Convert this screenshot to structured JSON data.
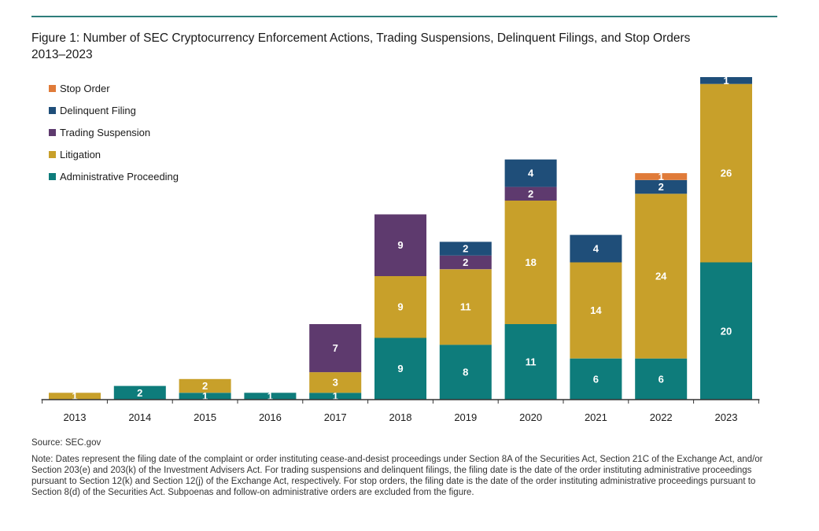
{
  "colors": {
    "rule": "#2e7d7b",
    "stop_order": "#e07b39",
    "delinquent_filing": "#1f4e79",
    "trading_suspension": "#5e3a6e",
    "litigation": "#c8a02a",
    "administrative_proceeding": "#0e7c7b",
    "axis": "#333333"
  },
  "chart_data": {
    "type": "bar",
    "stacked": true,
    "title_line1": "Figure 1: Number of SEC Cryptocurrency Enforcement Actions, Trading Suspensions, Delinquent Filings, and Stop Orders",
    "title_line2": "2013–2023",
    "categories": [
      "2013",
      "2014",
      "2015",
      "2016",
      "2017",
      "2018",
      "2019",
      "2020",
      "2021",
      "2022",
      "2023"
    ],
    "ylim": [
      0,
      47
    ],
    "legend_position": "top-left",
    "grid": false,
    "series": [
      {
        "name": "Administrative Proceeding",
        "color_key": "administrative_proceeding",
        "values": [
          0,
          2,
          1,
          1,
          1,
          9,
          8,
          11,
          6,
          6,
          20
        ]
      },
      {
        "name": "Litigation",
        "color_key": "litigation",
        "values": [
          1,
          0,
          2,
          0,
          3,
          9,
          11,
          18,
          14,
          24,
          26
        ]
      },
      {
        "name": "Trading Suspension",
        "color_key": "trading_suspension",
        "values": [
          0,
          0,
          0,
          0,
          7,
          9,
          2,
          2,
          0,
          0,
          0
        ]
      },
      {
        "name": "Delinquent Filing",
        "color_key": "delinquent_filing",
        "values": [
          0,
          0,
          0,
          0,
          0,
          0,
          2,
          4,
          4,
          2,
          1
        ]
      },
      {
        "name": "Stop Order",
        "color_key": "stop_order",
        "values": [
          0,
          0,
          0,
          0,
          0,
          0,
          0,
          0,
          0,
          1,
          0
        ]
      }
    ],
    "legend_order": [
      "Stop Order",
      "Delinquent Filing",
      "Trading Suspension",
      "Litigation",
      "Administrative Proceeding"
    ]
  },
  "source": "Source: SEC.gov",
  "note": "Note: Dates represent the filing date of the complaint or order instituting cease-and-desist proceedings under Section 8A of the Securities Act, Section 21C of the Exchange Act, and/or Section 203(e) and 203(k) of the Investment Advisers Act. For trading suspensions and delinquent filings, the filing date is the date of the order instituting administrative proceedings pursuant to Section 12(k) and Section 12(j) of the Exchange Act, respectively. For stop orders, the filing date is the date of the order instituting administrative proceedings pursuant to Section 8(d) of the Securities Act. Subpoenas and follow-on administrative orders are excluded from the figure."
}
